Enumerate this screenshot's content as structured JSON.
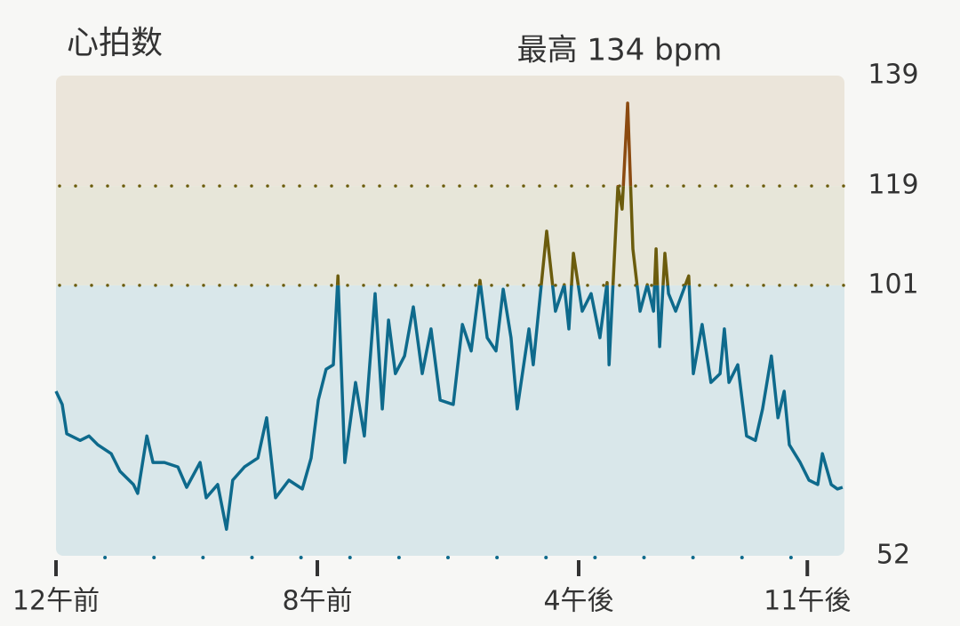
{
  "chart_data": {
    "type": "line",
    "title": "心拍数",
    "subtitle": "最高 134 bpm",
    "x": [
      0,
      0.19,
      0.33,
      0.74,
      1.01,
      1.28,
      1.69,
      1.96,
      2.37,
      2.5,
      2.78,
      2.97,
      3.32,
      3.73,
      4.0,
      4.41,
      4.6,
      4.95,
      5.22,
      5.41,
      5.77,
      6.18,
      6.45,
      6.72,
      7.13,
      7.54,
      7.81,
      8.03,
      8.27,
      8.49,
      8.63,
      8.84,
      9.17,
      9.44,
      9.77,
      9.99,
      10.18,
      10.39,
      10.67,
      10.94,
      11.21,
      11.48,
      11.76,
      12.16,
      12.44,
      12.71,
      12.98,
      13.2,
      13.47,
      13.69,
      13.93,
      14.12,
      14.48,
      14.61,
      15.02,
      15.29,
      15.56,
      15.7,
      15.84,
      16.11,
      16.38,
      16.65,
      16.87,
      16.93,
      17.2,
      17.33,
      17.5,
      17.66,
      17.88,
      18.1,
      18.29,
      18.37,
      18.48,
      18.64,
      18.75,
      18.97,
      19.37,
      19.51,
      19.78,
      20.05,
      20.33,
      20.46,
      20.6,
      20.87,
      21.14,
      21.41,
      21.63,
      21.9,
      22.1,
      22.29,
      22.45,
      22.78,
      23.05,
      23.32,
      23.46,
      23.73,
      23.92,
      24.08
    ],
    "values": [
      81.8,
      79.4,
      74.1,
      72.9,
      73.7,
      72.1,
      70.5,
      67.3,
      64.9,
      63.3,
      73.7,
      68.9,
      68.9,
      68.1,
      64.4,
      68.9,
      62.5,
      64.9,
      56.8,
      65.7,
      68.1,
      69.7,
      77.0,
      62.5,
      65.7,
      64.1,
      69.7,
      80.2,
      85.8,
      86.6,
      102.7,
      68.9,
      83.4,
      73.7,
      99.5,
      78.6,
      94.7,
      85.0,
      88.2,
      97.1,
      85.0,
      93.1,
      80.2,
      79.4,
      93.9,
      89.1,
      101.9,
      91.5,
      89.1,
      100.3,
      91.5,
      78.6,
      93.1,
      86.6,
      110.8,
      96.3,
      101.1,
      93.1,
      106.8,
      96.3,
      99.5,
      91.5,
      101.5,
      86.6,
      118.9,
      114.8,
      134,
      107.6,
      96.3,
      101.1,
      96.3,
      107.6,
      89.9,
      106.8,
      99.5,
      96.3,
      102.7,
      85.0,
      93.9,
      83.4,
      85.0,
      93.1,
      83.4,
      86.6,
      73.7,
      72.9,
      78.6,
      88.2,
      77.0,
      81.8,
      72.1,
      68.9,
      65.7,
      64.9,
      70.5,
      64.9,
      64.1,
      64.4
    ],
    "xlim": [
      0,
      24
    ],
    "xticks": [
      {
        "value": 0,
        "label": "12午前"
      },
      {
        "value": 8,
        "label": "8午前"
      },
      {
        "value": 16,
        "label": "4午後"
      },
      {
        "value": 23,
        "label": "11午後"
      }
    ],
    "ylim": [
      52,
      139
    ],
    "yticks": [
      52,
      101,
      119,
      139
    ],
    "band_colors": [
      "#d9e7ea",
      "#e7e6d9",
      "#ebe5da"
    ],
    "line_colors": [
      "#0e6a8c",
      "#6b5c0d",
      "#8b4a10"
    ],
    "grid_color": "#6b5c0d",
    "axis_color": "#0e6a8c"
  }
}
